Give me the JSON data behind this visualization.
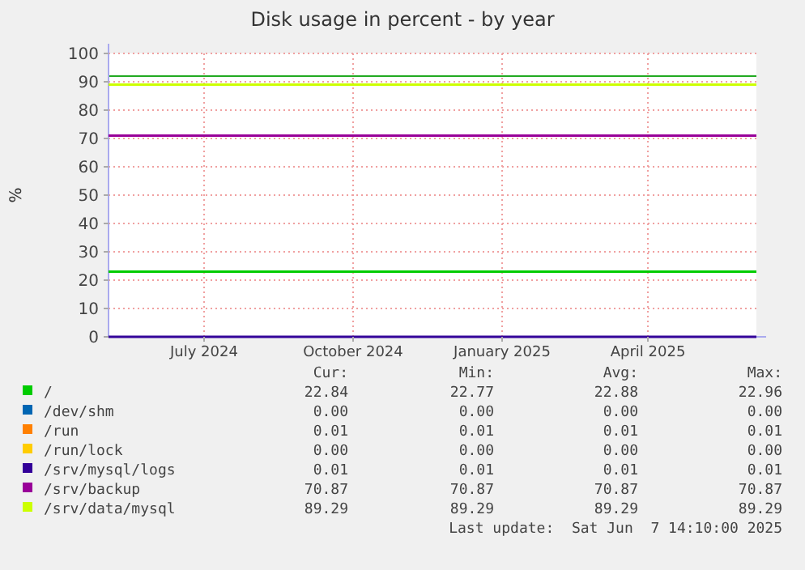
{
  "chart_data": {
    "type": "line",
    "title": "Disk usage in percent - by year",
    "ylabel": "%",
    "x": [
      "2024-05-03",
      "2025-06-07"
    ],
    "xlim": [
      "2024-05-03",
      "2025-06-07"
    ],
    "xticks": [
      {
        "value": "2024-07-01",
        "label": "July 2024"
      },
      {
        "value": "2024-10-01",
        "label": "October 2024"
      },
      {
        "value": "2025-01-01",
        "label": "January 2025"
      },
      {
        "value": "2025-04-01",
        "label": "April 2025"
      }
    ],
    "ylim": [
      0,
      100
    ],
    "yticks": [
      0,
      10,
      20,
      30,
      40,
      50,
      60,
      70,
      80,
      90,
      100
    ],
    "grid": true,
    "legend": "bottom",
    "line_style": "solid",
    "ref_lines": [
      {
        "axis": "y",
        "value": 92,
        "color": "#22aa22"
      }
    ],
    "series": [
      {
        "name": "/",
        "color": "#00cc00",
        "values": [
          23,
          23
        ]
      },
      {
        "name": "/dev/shm",
        "color": "#0066b3",
        "values": [
          null,
          null
        ]
      },
      {
        "name": "/run",
        "color": "#ff8000",
        "values": [
          null,
          null
        ]
      },
      {
        "name": "/run/lock",
        "color": "#ffcc00",
        "values": [
          null,
          null
        ]
      },
      {
        "name": "/srv/mysql/logs",
        "color": "#330099",
        "values": [
          0,
          0
        ]
      },
      {
        "name": "/srv/backup",
        "color": "#990099",
        "values": [
          71,
          71
        ]
      },
      {
        "name": "/srv/data/mysql",
        "color": "#ccff00",
        "values": [
          89,
          89
        ]
      }
    ],
    "annotations": [
      "Cur:",
      "Min:",
      "Avg:",
      "Max:",
      "22.84",
      "22.77",
      "22.88",
      "22.96",
      "0.00",
      "0.00",
      "0.00",
      "0.00",
      "0.01",
      "0.01",
      "0.01",
      "0.01",
      "0.00",
      "0.00",
      "0.00",
      "0.00",
      "0.01",
      "0.01",
      "0.01",
      "0.01",
      "70.87",
      "70.87",
      "70.87",
      "70.87",
      "89.29",
      "89.29",
      "89.29",
      "89.29",
      "Last update:  Sat Jun  7 14:10:00 2025"
    ]
  }
}
